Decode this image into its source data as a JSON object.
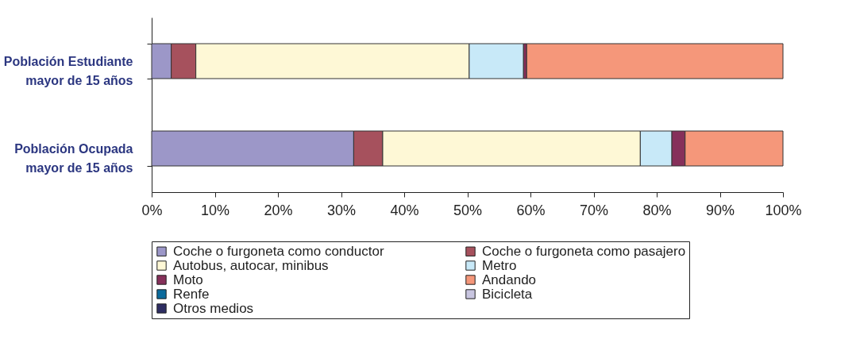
{
  "chart_data": {
    "type": "bar",
    "orientation": "horizontal",
    "stacked": true,
    "categories": [
      "Población Estudiante mayor de 15 años",
      "Población Ocupada mayor de 15 años"
    ],
    "series": [
      {
        "name": "Coche o furgoneta como conductor",
        "color": "#9c97c8",
        "values": [
          3.1,
          32.0
        ]
      },
      {
        "name": "Coche o furgoneta como pasajero",
        "color": "#a6515d",
        "values": [
          3.9,
          4.6
        ]
      },
      {
        "name": "Autobus, autocar, minibus",
        "color": "#fef8d6",
        "values": [
          43.3,
          40.8
        ]
      },
      {
        "name": "Metro",
        "color": "#c8e9f8",
        "values": [
          8.6,
          5.0
        ]
      },
      {
        "name": "Moto",
        "color": "#86305a",
        "values": [
          0.5,
          2.1
        ]
      },
      {
        "name": "Andando",
        "color": "#f5977a",
        "values": [
          40.6,
          15.5
        ]
      },
      {
        "name": "Renfe",
        "color": "#0a6a9c",
        "values": [
          0,
          0
        ]
      },
      {
        "name": "Bicicleta",
        "color": "#c8c5e0",
        "values": [
          0,
          0
        ]
      },
      {
        "name": "Otros medios",
        "color": "#2e2d62",
        "values": [
          0,
          0
        ]
      }
    ],
    "xlim": [
      0,
      100
    ],
    "xticks": [
      {
        "value": 0,
        "label": "0%"
      },
      {
        "value": 10,
        "label": "10%"
      },
      {
        "value": 20,
        "label": "20%"
      },
      {
        "value": 30,
        "label": "30%"
      },
      {
        "value": 40,
        "label": "40%"
      },
      {
        "value": 50,
        "label": "50%"
      },
      {
        "value": 60,
        "label": "60%"
      },
      {
        "value": 70,
        "label": "70%"
      },
      {
        "value": 80,
        "label": "80%"
      },
      {
        "value": 90,
        "label": "90%"
      },
      {
        "value": 100,
        "label": "100%"
      }
    ],
    "legend": "bottom",
    "grid": false
  }
}
